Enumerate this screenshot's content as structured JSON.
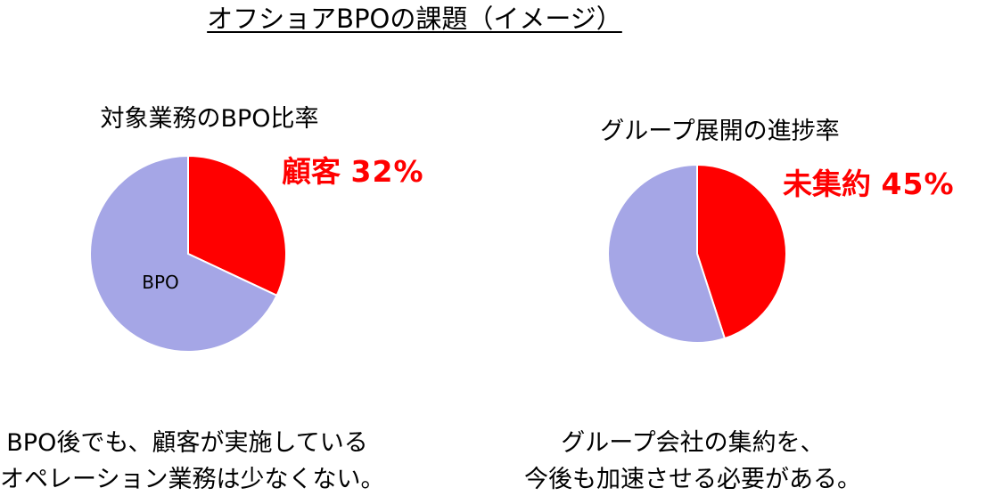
{
  "title": "オフショアBPOの課題（イメージ）",
  "colors": {
    "highlight": "#FF0000",
    "base": "#A5A6E6",
    "text": "#000000",
    "background": "#FFFFFF"
  },
  "chart_data": [
    {
      "type": "pie",
      "title": "対象業務のBPO比率",
      "slices": [
        {
          "label": "顧客",
          "value": 32,
          "value_label": "32%",
          "color": "#FF0000"
        },
        {
          "label": "BPO",
          "value": 68,
          "color": "#A5A6E6"
        }
      ]
    },
    {
      "type": "pie",
      "title": "グループ展開の進捗率",
      "slices": [
        {
          "label": "未集約",
          "value": 45,
          "value_label": "45%",
          "color": "#FF0000"
        },
        {
          "value": 55,
          "color": "#A5A6E6"
        }
      ]
    }
  ],
  "captions": {
    "left": [
      "BPO後でも、顧客が実施している",
      "オペレーション業務は少なくない。"
    ],
    "right": [
      "グループ会社の集約を、",
      "今後も加速させる必要がある。"
    ]
  }
}
